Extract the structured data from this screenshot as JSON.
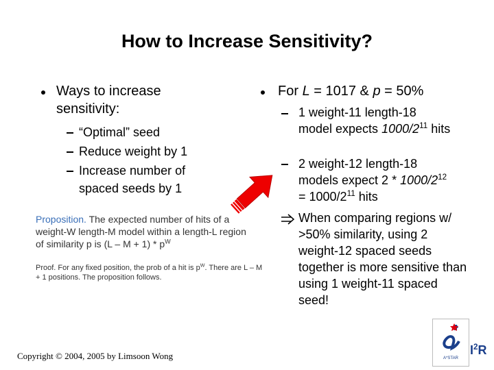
{
  "title": "How to Increase Sensitivity?",
  "left": {
    "bullet": "Ways to increase sensitivity:",
    "items": [
      "“Optimal” seed",
      "Reduce weight by 1",
      "Increase number of spaced seeds by 1"
    ]
  },
  "proposition": {
    "label": "Proposition.",
    "text": " The expected number of hits of a weight-W length-M model within a length-L region of similarity p is (L – M + 1) * p",
    "sup": "W"
  },
  "proof": {
    "text": "Proof. For any fixed position, the prob of a hit is p",
    "sup": "W",
    "rest": ". There are L – M + 1 positions. The proposition follows."
  },
  "right": {
    "bullet": [
      "For ",
      "L",
      " = 1017 & ",
      "p",
      " = 50%"
    ],
    "items": [
      [
        "1 weight-11 length-18 model expects ",
        "1000/2",
        "11",
        " hits"
      ],
      [
        "2 weight-12 length-18 models expect 2 * ",
        "1000/2",
        "12",
        " = 1000/2",
        "11",
        " hits"
      ]
    ],
    "conclusion": "When comparing regions w/ >50% similarity, using 2 weight-12 spaced seeds together is more sensitive than using 1 weight-11 spaced seed!"
  },
  "footer": "Copyright © 2004, 2005 by Limsoon Wong",
  "logo": {
    "mark": "A*STAR",
    "name": "I",
    "sup": "2",
    "end": "R"
  }
}
